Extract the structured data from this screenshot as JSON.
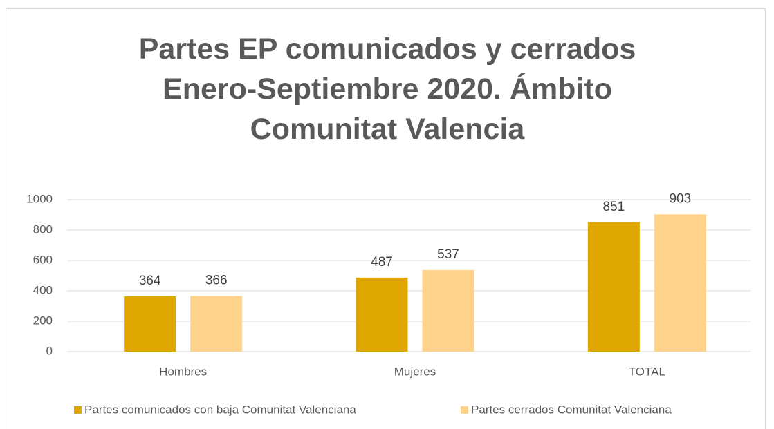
{
  "chart_data": {
    "type": "bar",
    "title": "Partes EP comunicados y cerrados Enero-Septiembre 2020. Ámbito Comunitat Valencia",
    "categories": [
      "Hombres",
      "Mujeres",
      "TOTAL"
    ],
    "series": [
      {
        "name": "Partes comunicados con baja Comunitat Valenciana",
        "color": "#DFA600",
        "values": [
          364,
          487,
          851
        ]
      },
      {
        "name": "Partes cerrados Comunitat Valenciana",
        "color": "#FFD38B",
        "values": [
          366,
          537,
          903
        ]
      }
    ],
    "ylim": [
      0,
      1000
    ],
    "yticks": [
      0,
      200,
      400,
      600,
      800,
      1000
    ],
    "grid": true,
    "legend": "bottom"
  }
}
